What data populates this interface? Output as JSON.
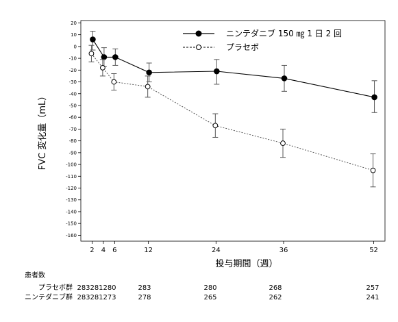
{
  "chart_data": {
    "type": "line",
    "title": "",
    "xlabel": "投与期間（週）",
    "ylabel": "FVC 変化量（mL）",
    "x": [
      2,
      4,
      6,
      12,
      24,
      36,
      52
    ],
    "xticks": [
      2,
      4,
      6,
      12,
      24,
      36,
      52
    ],
    "xlim": [
      0,
      54
    ],
    "ylim": [
      -165,
      22
    ],
    "yticks": [
      20,
      10,
      0,
      -10,
      -20,
      -30,
      -40,
      -50,
      -60,
      -70,
      -80,
      -90,
      -100,
      -110,
      -120,
      -130,
      -140,
      -150,
      -160
    ],
    "grid": false,
    "legend_position": "top-right",
    "series": [
      {
        "name": "ニンテダニブ 150 ㎎ 1 日 2 回",
        "marker": "filled-circle",
        "line": "solid",
        "values": [
          6,
          -9,
          -9,
          -22,
          -21,
          -27,
          -43
        ],
        "error": [
          [
            -3,
            13
          ],
          [
            -17,
            -1
          ],
          [
            -16,
            -2
          ],
          [
            -30,
            -14
          ],
          [
            -32,
            -11
          ],
          [
            -38,
            -16
          ],
          [
            -56,
            -29
          ]
        ]
      },
      {
        "name": "プラセボ",
        "marker": "open-circle",
        "line": "dotted",
        "values": [
          -6,
          -18,
          -30,
          -34,
          -67,
          -82,
          -105
        ],
        "error": [
          [
            -13,
            1
          ],
          [
            -25,
            -11
          ],
          [
            -37,
            -23
          ],
          [
            -43,
            -25
          ],
          [
            -77,
            -57
          ],
          [
            -94,
            -70
          ],
          [
            -119,
            -91
          ]
        ]
      }
    ],
    "patients": {
      "title": "患者数",
      "groups": [
        {
          "label": "プラセボ群",
          "counts": [
            "283",
            "281",
            "280",
            "283",
            "280",
            "268",
            "257"
          ]
        },
        {
          "label": "ニンテダニブ群",
          "counts": [
            "283",
            "281",
            "273",
            "278",
            "265",
            "262",
            "241"
          ]
        }
      ]
    }
  }
}
